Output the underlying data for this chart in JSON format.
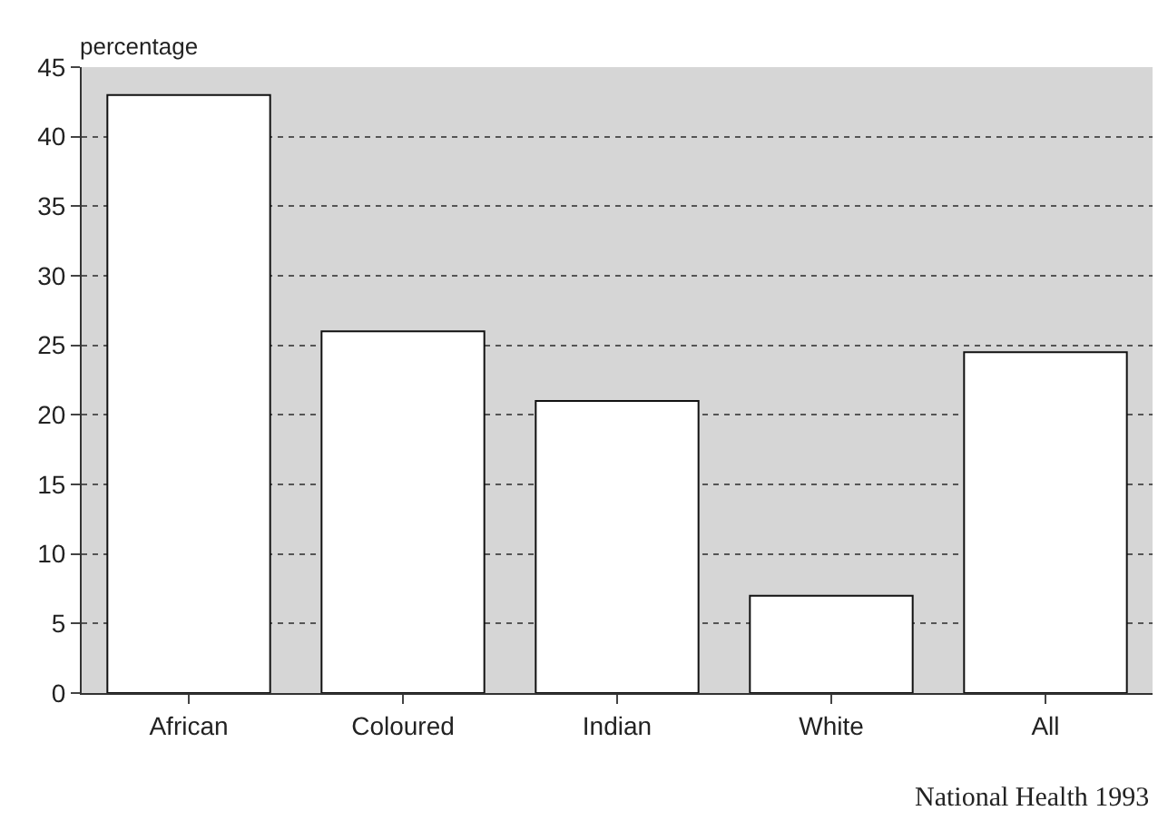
{
  "chart_data": {
    "type": "bar",
    "ylabel": "percentage",
    "categories": [
      "African",
      "Coloured",
      "Indian",
      "White",
      "All"
    ],
    "values": [
      43,
      26,
      21,
      7,
      24.5
    ],
    "color": "#ffffff",
    "ylim": [
      0,
      45
    ],
    "yticks": [
      0,
      5,
      10,
      15,
      20,
      25,
      30,
      35,
      40,
      45
    ],
    "grid": "y",
    "line_style": "dotted",
    "annotations": [
      "National Health 1993"
    ]
  }
}
